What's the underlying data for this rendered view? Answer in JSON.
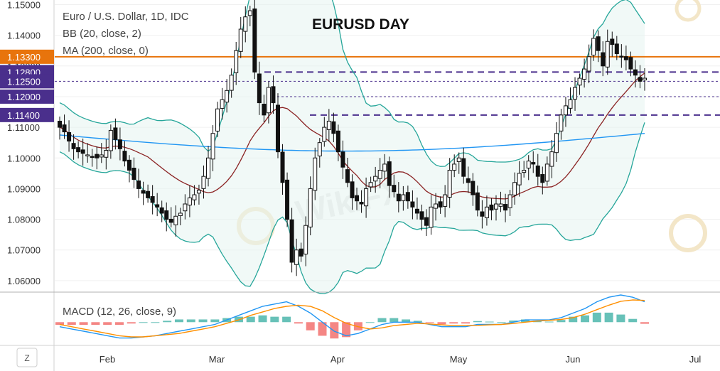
{
  "header": {
    "symbol_line": "Euro / U.S. Dollar, 1D, IDC",
    "bb_line": "BB (20, close, 2)",
    "ma_line": "MA (200, close, 0)",
    "title": "EURUSD DAY"
  },
  "price_tags": [
    {
      "label": "1.13300",
      "value": 1.133,
      "color": "#e8740c"
    },
    {
      "label": "1.12800",
      "value": 1.128,
      "color": "#4a2f8c"
    },
    {
      "label": "1.12500",
      "value": 1.125,
      "color": "#4a2f8c"
    },
    {
      "label": "1.12000",
      "value": 1.12,
      "color": "#4a2f8c"
    },
    {
      "label": "1.11400",
      "value": 1.114,
      "color": "#4a2f8c"
    }
  ],
  "macd": {
    "label": "MACD (12, 26, close, 9)"
  },
  "z_button": "Z",
  "colors": {
    "bb_band": "#26a69a",
    "bb_basis": "#8b2323",
    "ma200": "#2196f3",
    "candle": "#111111",
    "resistance": "#e8740c",
    "support": "#4a2f8c",
    "macd_line": "#2196f3",
    "signal_line": "#ff8f00",
    "hist_pos": "#26a69a",
    "hist_neg": "#ef5350"
  },
  "chart_data": {
    "type": "candlestick",
    "title": "EURUSD DAY",
    "y_ticks": [
      "1.15000",
      "1.14000",
      "1.13000",
      "1.12000",
      "1.11000",
      "1.10000",
      "1.09000",
      "1.08000",
      "1.07000",
      "1.06000"
    ],
    "ylim": [
      1.0565,
      1.1515
    ],
    "x_ticks": [
      "Feb",
      "Mar",
      "Apr",
      "May",
      "Jun",
      "Jul"
    ],
    "horizontal_levels": [
      {
        "value": 1.133,
        "style": "solid",
        "color": "#e8740c"
      },
      {
        "value": 1.128,
        "style": "dashed",
        "color": "#4a2f8c"
      },
      {
        "value": 1.125,
        "style": "dotted",
        "color": "#4a2f8c"
      },
      {
        "value": 1.12,
        "style": "dotted",
        "color": "#4a2f8c"
      },
      {
        "value": 1.114,
        "style": "dashed",
        "color": "#4a2f8c"
      }
    ],
    "closes": [
      1.11,
      1.1085,
      1.1055,
      1.103,
      1.102,
      1.1015,
      1.101,
      1.1005,
      1.1,
      1.101,
      1.1025,
      1.109,
      1.106,
      1.103,
      1.099,
      1.096,
      1.093,
      1.09,
      1.0885,
      1.087,
      1.0855,
      1.084,
      1.082,
      1.08,
      1.079,
      1.081,
      1.082,
      1.085,
      1.087,
      1.088,
      1.0895,
      1.094,
      1.1,
      1.108,
      1.116,
      1.119,
      1.122,
      1.127,
      1.135,
      1.142,
      1.146,
      1.148,
      1.128,
      1.118,
      1.114,
      1.123,
      1.118,
      1.102,
      1.092,
      1.08,
      1.066,
      1.07,
      1.068,
      1.078,
      1.09,
      1.1,
      1.105,
      1.11,
      1.112,
      1.108,
      1.102,
      1.097,
      1.092,
      1.087,
      1.086,
      1.085,
      1.09,
      1.092,
      1.094,
      1.096,
      1.098,
      1.091,
      1.089,
      1.086,
      1.088,
      1.086,
      1.084,
      1.082,
      1.08,
      1.078,
      1.084,
      1.085,
      1.084,
      1.088,
      1.096,
      1.098,
      1.1,
      1.094,
      1.092,
      1.088,
      1.083,
      1.081,
      1.084,
      1.083,
      1.085,
      1.085,
      1.083,
      1.088,
      1.092,
      1.095,
      1.096,
      1.099,
      1.098,
      1.094,
      1.092,
      1.098,
      1.102,
      1.108,
      1.114,
      1.117,
      1.119,
      1.123,
      1.126,
      1.129,
      1.133,
      1.139,
      1.135,
      1.13,
      1.138,
      1.137,
      1.134,
      1.133,
      1.132,
      1.129,
      1.127,
      1.125,
      1.126
    ],
    "macd_values": [
      -0.002,
      -0.003,
      -0.004,
      -0.005,
      -0.006,
      -0.007,
      -0.007,
      -0.0065,
      -0.006,
      -0.005,
      -0.004,
      -0.003,
      -0.002,
      -0.001,
      0.001,
      0.003,
      0.005,
      0.007,
      0.008,
      0.009,
      0.007,
      0.004,
      0.0,
      -0.004,
      -0.006,
      -0.005,
      -0.003,
      -0.001,
      0.0,
      0.0,
      0.0,
      -0.001,
      -0.002,
      -0.002,
      -0.002,
      -0.001,
      -0.001,
      -0.001,
      0.0,
      0.001,
      0.001,
      0.001,
      0.002,
      0.004,
      0.006,
      0.009,
      0.011,
      0.012,
      0.011,
      0.009
    ],
    "signal_values": [
      -0.001,
      -0.002,
      -0.003,
      -0.004,
      -0.005,
      -0.006,
      -0.0065,
      -0.0065,
      -0.006,
      -0.0055,
      -0.005,
      -0.004,
      -0.003,
      -0.002,
      -0.0005,
      0.001,
      0.003,
      0.0045,
      0.006,
      0.007,
      0.0075,
      0.007,
      0.005,
      0.002,
      -0.0005,
      -0.002,
      -0.003,
      -0.0025,
      -0.0015,
      -0.001,
      -0.0005,
      -0.0008,
      -0.0012,
      -0.0015,
      -0.0015,
      -0.0014,
      -0.0012,
      -0.001,
      -0.0006,
      0.0,
      0.0005,
      0.0008,
      0.0012,
      0.002,
      0.0035,
      0.0055,
      0.0075,
      0.0092,
      0.0098,
      0.0096
    ],
    "macd_ylim": [
      -0.009,
      0.012
    ]
  }
}
